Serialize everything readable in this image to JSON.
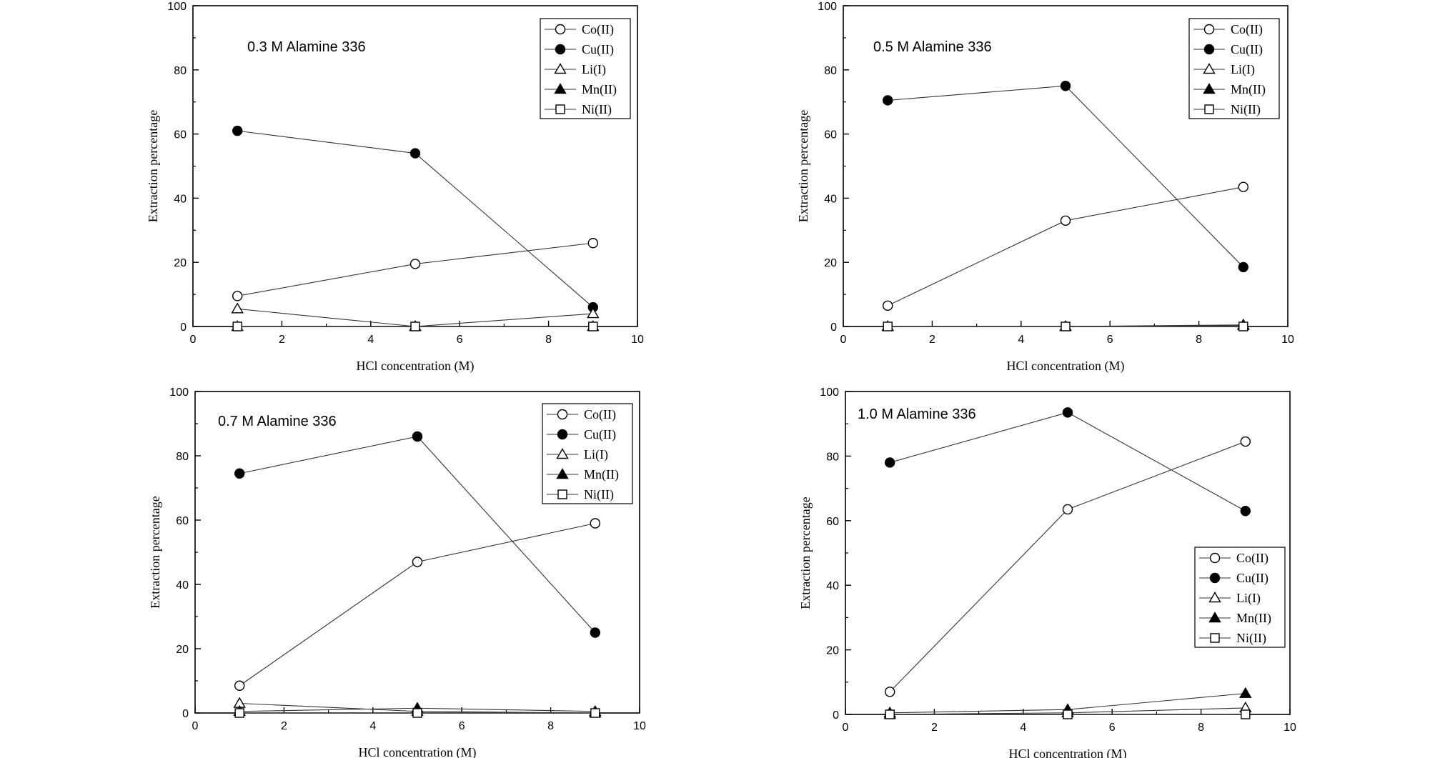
{
  "chart_data": [
    {
      "type": "line",
      "annotation": "0.3 M Alamine 336",
      "xlabel": "HCl concentration (M)",
      "ylabel": "Extraction percentage",
      "xlim": [
        0,
        10
      ],
      "ylim": [
        0,
        100
      ],
      "xticks": [
        "0",
        "2",
        "4",
        "6",
        "8",
        "10"
      ],
      "yticks": [
        "0",
        "20",
        "40",
        "60",
        "80",
        "100"
      ],
      "legend_position": "top-right",
      "x": [
        1,
        5,
        9
      ],
      "series": [
        {
          "name": "Co(II)",
          "marker": "circle-open",
          "values": [
            9.5,
            19.5,
            26
          ]
        },
        {
          "name": "Cu(II)",
          "marker": "circle-filled",
          "values": [
            61,
            54,
            6
          ]
        },
        {
          "name": "Li(I)",
          "marker": "triangle-open",
          "values": [
            5.5,
            0,
            4
          ]
        },
        {
          "name": "Mn(II)",
          "marker": "triangle-filled",
          "values": [
            0,
            0,
            0
          ]
        },
        {
          "name": "Ni(II)",
          "marker": "square-open",
          "values": [
            0,
            0,
            0
          ]
        }
      ]
    },
    {
      "type": "line",
      "annotation": "0.5 M Alamine 336",
      "xlabel": "HCl concentration (M)",
      "ylabel": "Extraction percentage",
      "xlim": [
        0,
        10
      ],
      "ylim": [
        0,
        100
      ],
      "xticks": [
        "0",
        "2",
        "4",
        "6",
        "8",
        "10"
      ],
      "yticks": [
        "0",
        "20",
        "40",
        "60",
        "80",
        "100"
      ],
      "legend_position": "top-right",
      "x": [
        1,
        5,
        9
      ],
      "series": [
        {
          "name": "Co(II)",
          "marker": "circle-open",
          "values": [
            6.5,
            33,
            43.5
          ]
        },
        {
          "name": "Cu(II)",
          "marker": "circle-filled",
          "values": [
            70.5,
            75,
            18.5
          ]
        },
        {
          "name": "Li(I)",
          "marker": "triangle-open",
          "values": [
            0,
            0,
            0.5
          ]
        },
        {
          "name": "Mn(II)",
          "marker": "triangle-filled",
          "values": [
            0,
            0,
            0.3
          ]
        },
        {
          "name": "Ni(II)",
          "marker": "square-open",
          "values": [
            0,
            0,
            0
          ]
        }
      ]
    },
    {
      "type": "line",
      "annotation": "0.7 M Alamine 336",
      "xlabel": "HCl concentration (M)",
      "ylabel": "Extraction percentage",
      "xlim": [
        0,
        10
      ],
      "ylim": [
        0,
        100
      ],
      "xticks": [
        "0",
        "2",
        "4",
        "6",
        "8",
        "10"
      ],
      "yticks": [
        "0",
        "20",
        "40",
        "60",
        "80",
        "100"
      ],
      "legend_position": "top-right",
      "x": [
        1,
        5,
        9
      ],
      "series": [
        {
          "name": "Co(II)",
          "marker": "circle-open",
          "values": [
            8.5,
            47,
            59
          ]
        },
        {
          "name": "Cu(II)",
          "marker": "circle-filled",
          "values": [
            74.5,
            86,
            25
          ]
        },
        {
          "name": "Li(I)",
          "marker": "triangle-open",
          "values": [
            3,
            0.5,
            0
          ]
        },
        {
          "name": "Mn(II)",
          "marker": "triangle-filled",
          "values": [
            0.5,
            1.5,
            0.5
          ]
        },
        {
          "name": "Ni(II)",
          "marker": "square-open",
          "values": [
            0,
            0,
            0
          ]
        }
      ]
    },
    {
      "type": "line",
      "annotation": "1.0 M Alamine 336",
      "xlabel": "HCl concentration (M)",
      "ylabel": "Extraction percentage",
      "xlim": [
        0,
        10
      ],
      "ylim": [
        0,
        100
      ],
      "xticks": [
        "0",
        "2",
        "4",
        "6",
        "8",
        "10"
      ],
      "yticks": [
        "0",
        "20",
        "40",
        "60",
        "80",
        "100"
      ],
      "legend_position": "center-right",
      "x": [
        1,
        5,
        9
      ],
      "series": [
        {
          "name": "Co(II)",
          "marker": "circle-open",
          "values": [
            7,
            63.5,
            84.5
          ]
        },
        {
          "name": "Cu(II)",
          "marker": "circle-filled",
          "values": [
            78,
            93.5,
            63
          ]
        },
        {
          "name": "Li(I)",
          "marker": "triangle-open",
          "values": [
            0,
            0.5,
            2
          ]
        },
        {
          "name": "Mn(II)",
          "marker": "triangle-filled",
          "values": [
            0.5,
            1.5,
            6.5
          ]
        },
        {
          "name": "Ni(II)",
          "marker": "square-open",
          "values": [
            0,
            0,
            0
          ]
        }
      ]
    }
  ]
}
